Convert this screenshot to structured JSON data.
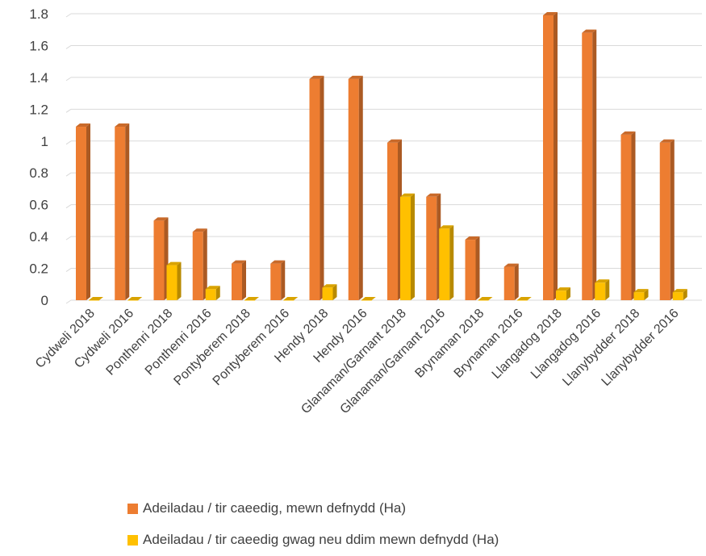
{
  "chart_data": {
    "type": "bar",
    "style": "3d-clustered-column",
    "categories": [
      "Cydweli 2018",
      "Cydweli 2016",
      "Ponthenri 2018",
      "Ponthenri 2016",
      "Pontyberem 2018",
      "Pontyberem 2016",
      "Hendy 2018",
      "Hendy 2016",
      "Glanaman/Garnant 2018",
      "Glanaman/Garnant 2016",
      "Brynaman 2018",
      "Brynaman 2016",
      "Llangadog 2018",
      "Llangadog 2016",
      "Llanybydder 2018",
      "Llanybydder 2016"
    ],
    "series": [
      {
        "name": "Adeiladau / tir caeedig, mewn defnydd (Ha)",
        "color": "#ED7D31",
        "values": [
          1.09,
          1.09,
          0.5,
          0.43,
          0.23,
          0.23,
          1.39,
          1.39,
          0.99,
          0.65,
          0.38,
          0.21,
          1.79,
          1.68,
          1.04,
          0.99
        ]
      },
      {
        "name": "Adeiladau / tir caeedig gwag neu ddim mewn defnydd (Ha)",
        "color": "#FFC000",
        "values": [
          0,
          0,
          0.22,
          0.07,
          0,
          0,
          0.08,
          0,
          0.65,
          0.45,
          0,
          0,
          0.06,
          0.11,
          0.05,
          0.05
        ]
      }
    ],
    "yticks": [
      "0",
      "0.2",
      "0.4",
      "0.6",
      "0.8",
      "1",
      "1.2",
      "1.4",
      "1.6",
      "1.8"
    ],
    "ylim": [
      0,
      1.8
    ],
    "grid": true,
    "legend_position": "bottom"
  }
}
